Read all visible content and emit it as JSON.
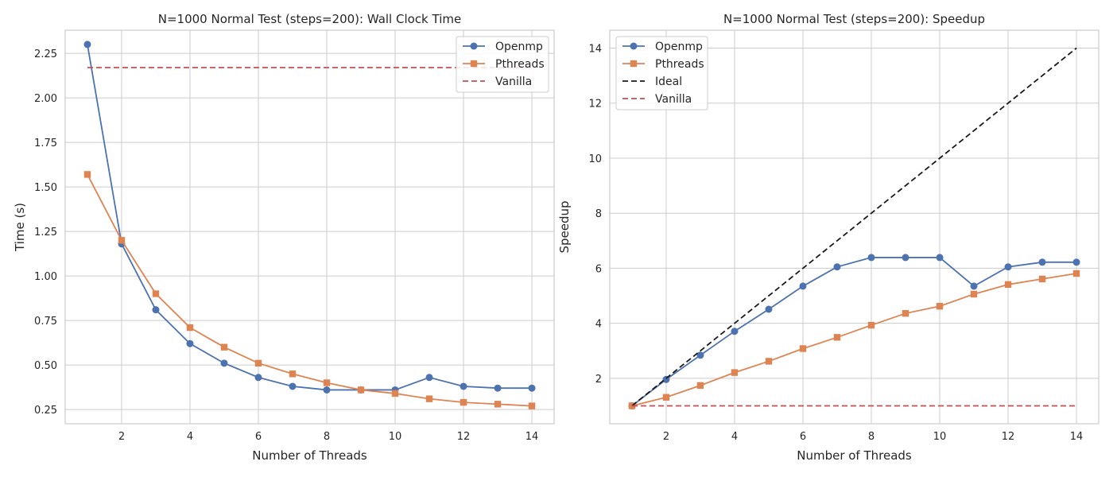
{
  "chart_data": [
    {
      "type": "line",
      "title": "N=1000 Normal Test (steps=200): Wall Clock Time",
      "xlabel": "Number of Threads",
      "ylabel": "Time (s)",
      "xlim": [
        0.35,
        14.65
      ],
      "ylim": [
        0.17,
        2.38
      ],
      "xticks": [
        2,
        4,
        6,
        8,
        10,
        12,
        14
      ],
      "yticks": [
        0.25,
        0.5,
        0.75,
        1.0,
        1.25,
        1.5,
        1.75,
        2.0,
        2.25
      ],
      "ytick_labels": [
        "0.25",
        "0.50",
        "0.75",
        "1.00",
        "1.25",
        "1.50",
        "1.75",
        "2.00",
        "2.25"
      ],
      "grid": true,
      "legend_position": "top-right",
      "series": [
        {
          "name": "Openmp",
          "style": "line-circle",
          "color": "#4c72b0",
          "x": [
            1,
            2,
            3,
            4,
            5,
            6,
            7,
            8,
            9,
            10,
            11,
            12,
            13,
            14
          ],
          "y": [
            2.3,
            1.18,
            0.81,
            0.62,
            0.51,
            0.43,
            0.38,
            0.36,
            0.36,
            0.36,
            0.43,
            0.38,
            0.37,
            0.37
          ]
        },
        {
          "name": "Pthreads",
          "style": "line-square",
          "color": "#dd8452",
          "x": [
            1,
            2,
            3,
            4,
            5,
            6,
            7,
            8,
            9,
            10,
            11,
            12,
            13,
            14
          ],
          "y": [
            1.57,
            1.2,
            0.9,
            0.71,
            0.6,
            0.51,
            0.45,
            0.4,
            0.36,
            0.34,
            0.31,
            0.29,
            0.28,
            0.27
          ]
        },
        {
          "name": "Vanilla",
          "style": "dashed",
          "color": "#c44e52",
          "x": [
            1,
            14
          ],
          "y": [
            2.17,
            2.17
          ]
        }
      ]
    },
    {
      "type": "line",
      "title": "N=1000 Normal Test (steps=200): Speedup",
      "xlabel": "Number of Threads",
      "ylabel": "Speedup",
      "xlim": [
        0.35,
        14.65
      ],
      "ylim": [
        0.35,
        14.65
      ],
      "xticks": [
        2,
        4,
        6,
        8,
        10,
        12,
        14
      ],
      "yticks": [
        2,
        4,
        6,
        8,
        10,
        12,
        14
      ],
      "ytick_labels": [
        "2",
        "4",
        "6",
        "8",
        "10",
        "12",
        "14"
      ],
      "grid": true,
      "legend_position": "top-left",
      "series": [
        {
          "name": "Openmp",
          "style": "line-circle",
          "color": "#4c72b0",
          "x": [
            1,
            2,
            3,
            4,
            5,
            6,
            7,
            8,
            9,
            10,
            11,
            12,
            13,
            14
          ],
          "y": [
            1.0,
            1.96,
            2.84,
            3.71,
            4.51,
            5.35,
            6.05,
            6.39,
            6.39,
            6.39,
            5.35,
            6.05,
            6.22,
            6.22
          ]
        },
        {
          "name": "Pthreads",
          "style": "line-square",
          "color": "#dd8452",
          "x": [
            1,
            2,
            3,
            4,
            5,
            6,
            7,
            8,
            9,
            10,
            11,
            12,
            13,
            14
          ],
          "y": [
            1.0,
            1.31,
            1.74,
            2.21,
            2.62,
            3.08,
            3.49,
            3.93,
            4.36,
            4.62,
            5.06,
            5.41,
            5.61,
            5.81
          ]
        },
        {
          "name": "Ideal",
          "style": "dashed",
          "color": "#1a1a1a",
          "x": [
            1,
            14
          ],
          "y": [
            1,
            14
          ]
        },
        {
          "name": "Vanilla",
          "style": "dashed",
          "color": "#c44e52",
          "x": [
            1,
            14
          ],
          "y": [
            1,
            1
          ]
        }
      ]
    }
  ]
}
